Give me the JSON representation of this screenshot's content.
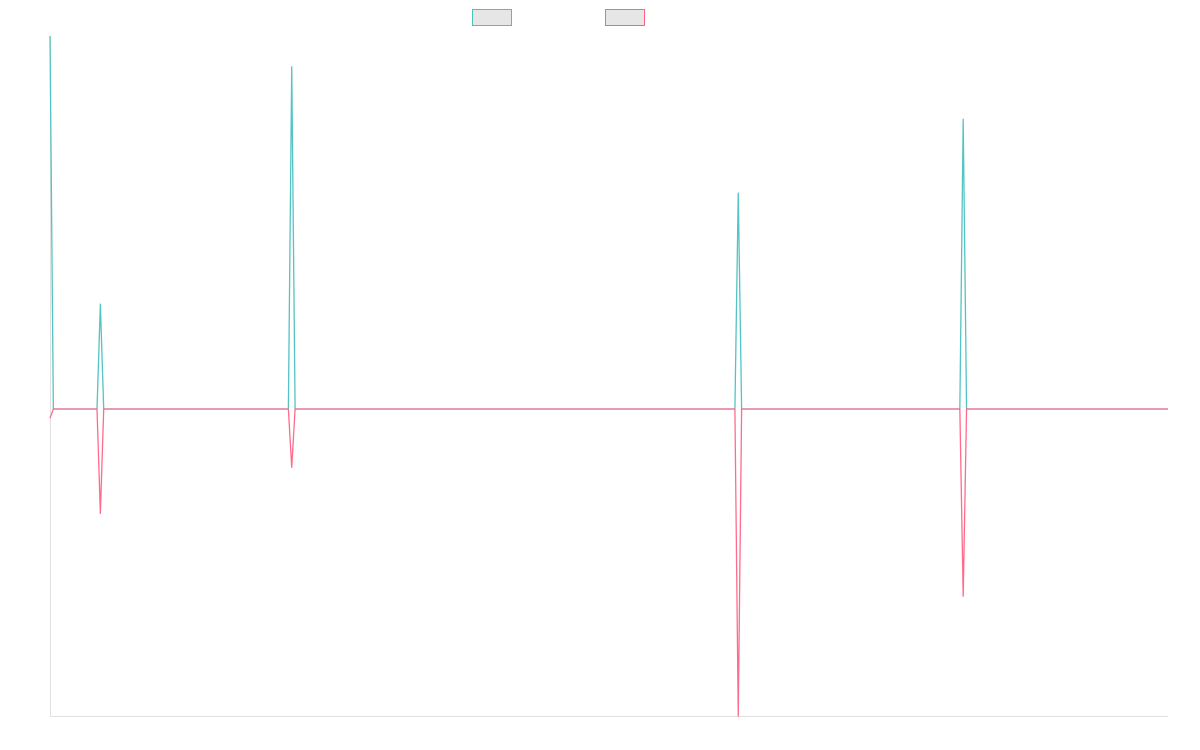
{
  "chart_data": {
    "type": "line",
    "title": "",
    "xlabel": "",
    "ylabel": "",
    "legend_position": "top-center",
    "grid": false,
    "x_count": 334,
    "xlim": [
      0,
      333
    ],
    "ylim": [
      -100,
      121
    ],
    "baseline": 0,
    "series": [
      {
        "name": "",
        "color": "#4bc0c0",
        "legend_fill": "#e6e6e6",
        "points": [
          [
            0,
            121
          ],
          [
            1,
            0
          ],
          [
            14,
            0
          ],
          [
            15,
            34
          ],
          [
            16,
            0
          ],
          [
            71,
            0
          ],
          [
            72,
            111
          ],
          [
            73,
            0
          ],
          [
            204,
            0
          ],
          [
            205,
            70
          ],
          [
            206,
            0
          ],
          [
            271,
            0
          ],
          [
            272,
            94
          ],
          [
            273,
            0
          ],
          [
            333,
            0
          ]
        ]
      },
      {
        "name": "",
        "color": "#ff6384",
        "legend_fill": "#e6e6e6",
        "points": [
          [
            0,
            -3
          ],
          [
            1,
            0
          ],
          [
            14,
            0
          ],
          [
            15,
            -34
          ],
          [
            16,
            0
          ],
          [
            71,
            0
          ],
          [
            72,
            -19
          ],
          [
            73,
            0
          ],
          [
            204,
            0
          ],
          [
            205,
            -100
          ],
          [
            206,
            0
          ],
          [
            271,
            0
          ],
          [
            272,
            -61
          ],
          [
            273,
            0
          ],
          [
            333,
            0
          ]
        ]
      }
    ]
  }
}
